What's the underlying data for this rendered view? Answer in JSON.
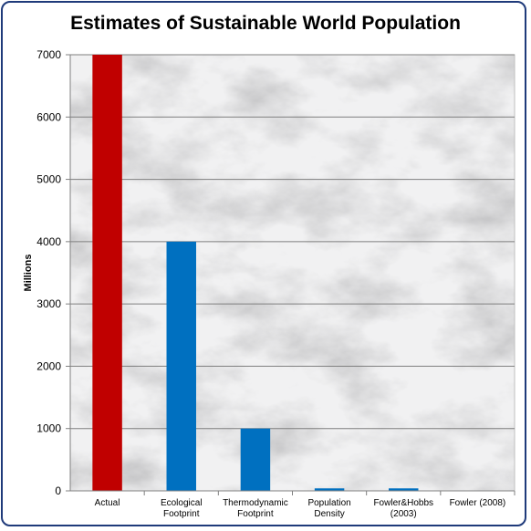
{
  "chart_data": {
    "type": "bar",
    "title": "Estimates of Sustainable World Population",
    "ylabel": "Millions",
    "xlabel": "",
    "ylim": [
      0,
      7000
    ],
    "yticks": [
      0,
      1000,
      2000,
      3000,
      4000,
      5000,
      6000,
      7000
    ],
    "grid": true,
    "categories": [
      [
        "Actual"
      ],
      [
        "Ecological",
        "Footprint"
      ],
      [
        "Thermodynamic",
        "Footprint"
      ],
      [
        "Population",
        "Density"
      ],
      [
        "Fowler&Hobbs",
        "(2003)"
      ],
      [
        "Fowler (2008)"
      ]
    ],
    "values": [
      7000,
      4000,
      1000,
      40,
      40,
      5
    ],
    "colors": [
      "#c00000",
      "#0070c0",
      "#0070c0",
      "#0070c0",
      "#0070c0",
      "#0070c0"
    ],
    "background": "marble"
  }
}
